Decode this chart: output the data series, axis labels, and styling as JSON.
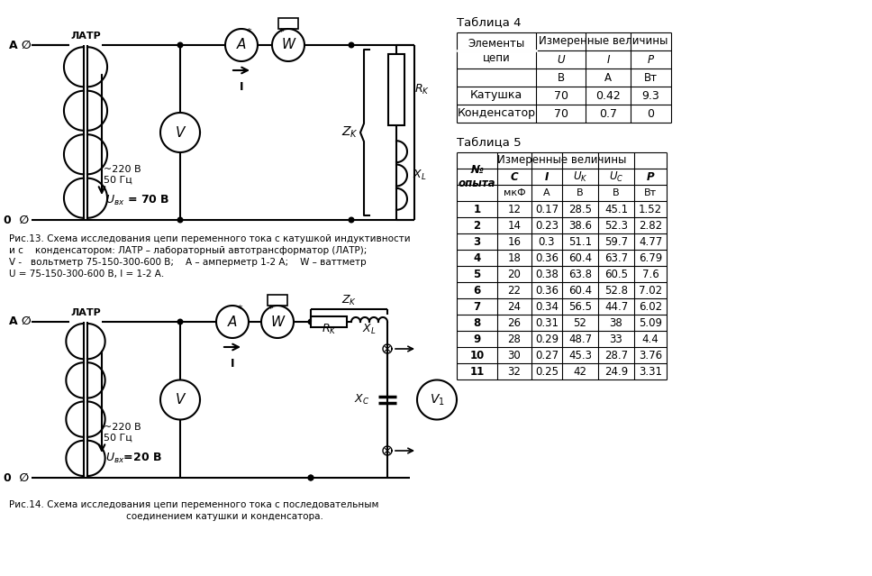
{
  "fig_width": 9.68,
  "fig_height": 6.39,
  "bg_color": "#ffffff",
  "table4_title": "Таблица 4",
  "table4_rows": [
    [
      "Катушка",
      "70",
      "0.42",
      "9.3"
    ],
    [
      "Конденсатор",
      "70",
      "0.7",
      "0"
    ]
  ],
  "table5_title": "Таблица 5",
  "table5_rows": [
    [
      "1",
      "12",
      "0.17",
      "28.5",
      "45.1",
      "1.52"
    ],
    [
      "2",
      "14",
      "0.23",
      "38.6",
      "52.3",
      "2.82"
    ],
    [
      "3",
      "16",
      "0.3",
      "51.1",
      "59.7",
      "4.77"
    ],
    [
      "4",
      "18",
      "0.36",
      "60.4",
      "63.7",
      "6.79"
    ],
    [
      "5",
      "20",
      "0.38",
      "63.8",
      "60.5",
      "7.6"
    ],
    [
      "6",
      "22",
      "0.36",
      "60.4",
      "52.8",
      "7.02"
    ],
    [
      "7",
      "24",
      "0.34",
      "56.5",
      "44.7",
      "6.02"
    ],
    [
      "8",
      "26",
      "0.31",
      "52",
      "38",
      "5.09"
    ],
    [
      "9",
      "28",
      "0.29",
      "48.7",
      "33",
      "4.4"
    ],
    [
      "10",
      "30",
      "0.27",
      "45.3",
      "28.7",
      "3.76"
    ],
    [
      "11",
      "32",
      "0.25",
      "42",
      "24.9",
      "3.31"
    ]
  ],
  "fig13_caption_line1": "Рис.13. Схема исследования цепи переменного тока с катушкой индуктивности",
  "fig13_caption_line2": "и с    конденсатором: ЛАТР – лабораторный автотрансформатор (ЛАТР);",
  "fig13_caption_line3": "V -   вольтметр 75-150-300-600 В;    А – амперметр 1-2 А;    W – ваттметр",
  "fig13_caption_line4": "U = 75-150-300-600 В, I = 1-2 А.",
  "fig14_caption_line1": "Рис.14. Схема исследования цепи переменного тока с последовательным",
  "fig14_caption_line2": "                    соединением катушки и конденсатора."
}
